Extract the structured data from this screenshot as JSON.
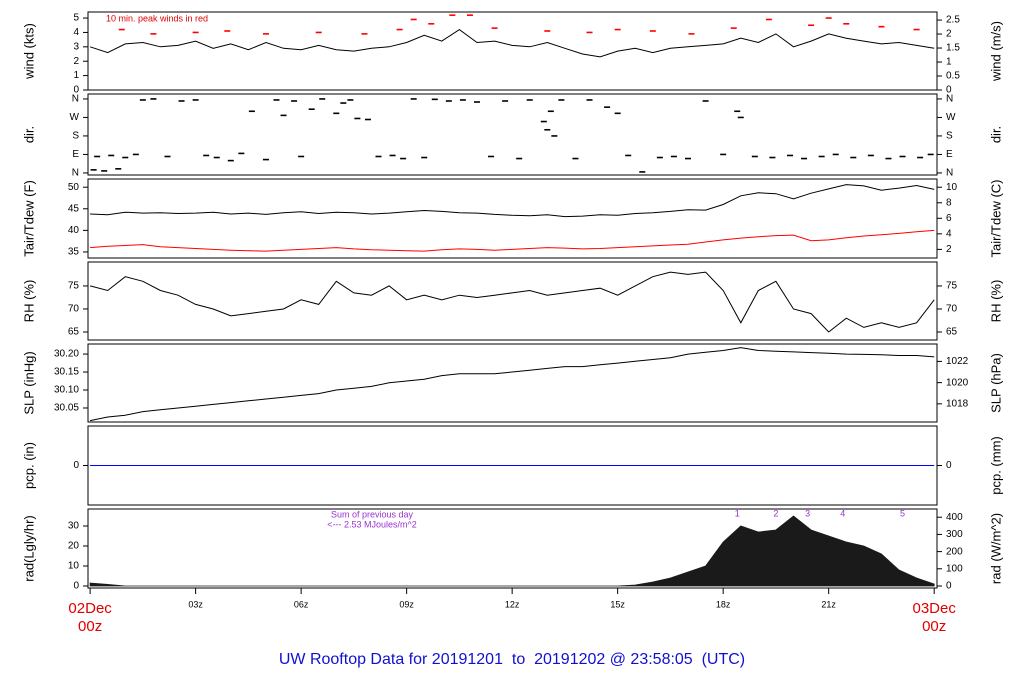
{
  "title": "UW Rooftop Data for 20191201  to  20191202 @ 23:58:05  (UTC)",
  "x": [
    0,
    0.5,
    1,
    1.5,
    2,
    2.5,
    3,
    3.5,
    4,
    4.5,
    5,
    5.5,
    6,
    6.5,
    7,
    7.5,
    8,
    8.5,
    9,
    9.5,
    10,
    10.5,
    11,
    11.5,
    12,
    12.5,
    13,
    13.5,
    14,
    14.5,
    15,
    15.5,
    16,
    16.5,
    17,
    17.5,
    18,
    18.5,
    19,
    19.5,
    20,
    20.5,
    21,
    21.5,
    22,
    22.5,
    23,
    23.5,
    24
  ],
  "xlim": [
    -0.06,
    24.08
  ],
  "xticks": [
    {
      "value": 0,
      "label": "00z"
    },
    {
      "value": 3,
      "label": "03z"
    },
    {
      "value": 6,
      "label": "06z"
    },
    {
      "value": 9,
      "label": "09z"
    },
    {
      "value": 12,
      "label": "12z"
    },
    {
      "value": 15,
      "label": "15z"
    },
    {
      "value": 18,
      "label": "18z"
    },
    {
      "value": 21,
      "label": "21z"
    },
    {
      "value": 24,
      "label": "00z"
    }
  ],
  "xtick_dates": [
    "02Dec",
    "03Dec"
  ],
  "chart_data": [
    {
      "type": "line",
      "ylabel": "wind (kts)",
      "y2label": "wind (m/s)",
      "annotation": "10 min. peak winds in red",
      "ylim": [
        0,
        5.42
      ],
      "yticks": [
        0,
        1,
        2,
        3,
        4,
        5
      ],
      "y2lim": [
        0,
        2.788
      ],
      "y2ticks": [
        0,
        0.5,
        1,
        1.5,
        2,
        2.5
      ],
      "series": [
        {
          "color": "#000000",
          "values": [
            3.0,
            2.6,
            3.2,
            3.3,
            3.0,
            3.1,
            3.4,
            2.9,
            3.2,
            2.8,
            3.3,
            2.9,
            2.8,
            3.1,
            2.8,
            2.7,
            2.9,
            3.0,
            3.3,
            3.8,
            3.4,
            4.2,
            3.3,
            3.4,
            3.1,
            3.0,
            3.3,
            2.9,
            2.5,
            2.3,
            2.7,
            2.9,
            2.6,
            2.9,
            3.0,
            3.1,
            3.2,
            3.6,
            3.3,
            3.9,
            3.0,
            3.4,
            3.9,
            3.6,
            3.4,
            3.2,
            3.3,
            3.1,
            2.9
          ]
        },
        {
          "color": "#ff0000",
          "marker": "dash",
          "x": [
            0.9,
            1.8,
            3.0,
            3.9,
            5.0,
            6.5,
            7.8,
            8.8,
            9.2,
            9.7,
            10.3,
            10.8,
            11.5,
            13.0,
            14.2,
            15.0,
            16.0,
            17.1,
            18.3,
            19.3,
            20.5,
            21.0,
            21.5,
            22.5,
            23.5
          ],
          "values": [
            4.2,
            3.9,
            4.0,
            4.1,
            3.9,
            4.0,
            3.9,
            4.2,
            4.9,
            4.6,
            5.2,
            5.2,
            4.3,
            4.1,
            4.0,
            4.2,
            4.1,
            3.9,
            4.3,
            4.9,
            4.5,
            5.0,
            4.6,
            4.4,
            4.2
          ]
        }
      ]
    },
    {
      "type": "scatter",
      "ylabel": "dir.",
      "y2label": "dir.",
      "ylim": [
        -10,
        384
      ],
      "yticks": [
        {
          "value": 360,
          "label": "N"
        },
        {
          "value": 270,
          "label": "W"
        },
        {
          "value": 180,
          "label": "S"
        },
        {
          "value": 90,
          "label": "E"
        },
        {
          "value": 0,
          "label": "N"
        }
      ],
      "y2lim": [
        -10,
        384
      ],
      "y2ticks": [
        {
          "value": 360,
          "label": "N"
        },
        {
          "value": 270,
          "label": "W"
        },
        {
          "value": 180,
          "label": "S"
        },
        {
          "value": 90,
          "label": "E"
        },
        {
          "value": 0,
          "label": "N"
        }
      ],
      "series": [
        {
          "color": "#000000",
          "x": [
            0.1,
            0.2,
            0.4,
            0.6,
            0.8,
            1.0,
            1.3,
            1.5,
            1.8,
            2.2,
            2.6,
            3.0,
            3.3,
            3.6,
            4.0,
            4.3,
            4.6,
            5.0,
            5.3,
            5.5,
            5.8,
            6.0,
            6.3,
            6.6,
            7.0,
            7.2,
            7.4,
            7.6,
            7.9,
            8.2,
            8.6,
            8.9,
            9.2,
            9.5,
            9.8,
            10.2,
            10.6,
            11.0,
            11.4,
            11.8,
            12.2,
            12.5,
            12.9,
            13.0,
            13.1,
            13.2,
            13.4,
            13.8,
            14.2,
            14.7,
            15.0,
            15.3,
            15.7,
            16.2,
            16.6,
            17.0,
            17.5,
            18.0,
            18.4,
            18.5,
            18.9,
            19.4,
            19.9,
            20.3,
            20.8,
            21.2,
            21.7,
            22.2,
            22.7,
            23.1,
            23.6,
            23.9
          ],
          "values": [
            15,
            80,
            10,
            85,
            20,
            75,
            90,
            355,
            360,
            80,
            350,
            355,
            85,
            75,
            60,
            95,
            300,
            65,
            355,
            280,
            350,
            80,
            310,
            360,
            290,
            340,
            355,
            265,
            260,
            80,
            85,
            70,
            360,
            75,
            358,
            350,
            355,
            345,
            80,
            350,
            70,
            355,
            250,
            210,
            300,
            180,
            355,
            70,
            355,
            320,
            290,
            85,
            5,
            75,
            80,
            70,
            350,
            90,
            300,
            270,
            80,
            75,
            85,
            70,
            80,
            90,
            75,
            85,
            70,
            80,
            75,
            90
          ]
        }
      ]
    },
    {
      "type": "line",
      "ylabel": "Tair/Tdew (F)",
      "y2label": "Tair/Tdew (C)",
      "ylim": [
        33.6,
        51.9
      ],
      "yticks": [
        35,
        40,
        45,
        50
      ],
      "y2lim": [
        0.89,
        11.06
      ],
      "y2ticks": [
        2,
        4,
        6,
        8,
        10
      ],
      "series": [
        {
          "color": "#000000",
          "values": [
            43.8,
            43.6,
            44.2,
            44.0,
            44.1,
            43.9,
            44.0,
            44.2,
            43.8,
            44.0,
            43.7,
            44.1,
            44.3,
            43.9,
            44.2,
            44.1,
            43.8,
            44.0,
            44.3,
            44.6,
            44.4,
            44.1,
            44.0,
            43.7,
            43.5,
            43.4,
            43.6,
            43.2,
            43.3,
            43.6,
            43.5,
            43.9,
            44.1,
            44.4,
            44.8,
            44.7,
            46.0,
            48.0,
            48.7,
            48.5,
            47.3,
            48.6,
            49.6,
            50.6,
            50.3,
            49.3,
            49.8,
            50.4,
            49.5
          ]
        },
        {
          "color": "#ff0000",
          "values": [
            36.0,
            36.3,
            36.5,
            36.7,
            36.2,
            36.0,
            35.8,
            35.6,
            35.4,
            35.3,
            35.2,
            35.4,
            35.6,
            35.8,
            36.0,
            35.7,
            35.5,
            35.4,
            35.3,
            35.2,
            35.5,
            35.7,
            35.6,
            35.4,
            35.6,
            35.8,
            36.0,
            35.9,
            35.7,
            35.8,
            36.0,
            36.2,
            36.4,
            36.6,
            36.8,
            37.3,
            37.8,
            38.2,
            38.5,
            38.8,
            38.9,
            37.6,
            37.8,
            38.3,
            38.7,
            39.0,
            39.3,
            39.7,
            40.0
          ]
        }
      ]
    },
    {
      "type": "line",
      "ylabel": "RH (%)",
      "y2label": "RH (%)",
      "ylim": [
        63.26,
        80.2
      ],
      "yticks": [
        65,
        70,
        75
      ],
      "y2lim": [
        63.26,
        80.2
      ],
      "y2ticks": [
        65,
        70,
        75
      ],
      "series": [
        {
          "color": "#000000",
          "values": [
            75,
            74,
            77,
            76,
            74,
            73,
            71,
            70,
            68.5,
            69,
            69.5,
            70,
            72,
            71,
            76,
            73.5,
            73,
            75,
            72,
            73,
            72,
            73,
            72.5,
            73,
            73.5,
            74,
            73,
            73.5,
            74,
            74.5,
            73,
            75,
            77,
            78,
            77.5,
            78,
            74,
            67,
            74,
            76,
            70,
            69,
            65,
            68,
            66,
            67,
            66,
            67,
            72
          ]
        }
      ]
    },
    {
      "type": "line",
      "ylabel": "SLP (inHg)",
      "y2label": "SLP (hPa)",
      "ylim": [
        30.011,
        30.228
      ],
      "yticks": [
        30.05,
        {
          "value": 30.1,
          "label": "30.10"
        },
        30.15,
        {
          "value": 30.2,
          "label": "30.20"
        }
      ],
      "y2lim": [
        1016.29,
        1023.64
      ],
      "y2ticks": [
        1018,
        1020,
        1022
      ],
      "series": [
        {
          "color": "#000000",
          "values": [
            30.015,
            30.025,
            30.03,
            30.04,
            30.045,
            30.05,
            30.055,
            30.06,
            30.065,
            30.07,
            30.075,
            30.08,
            30.085,
            30.09,
            30.1,
            30.105,
            30.11,
            30.12,
            30.125,
            30.13,
            30.14,
            30.145,
            30.145,
            30.145,
            30.15,
            30.155,
            30.16,
            30.165,
            30.165,
            30.17,
            30.175,
            30.18,
            30.185,
            30.19,
            30.2,
            30.205,
            30.21,
            30.218,
            30.21,
            30.208,
            30.206,
            30.204,
            30.202,
            30.2,
            30.199,
            30.198,
            30.196,
            30.196,
            30.192
          ]
        }
      ]
    },
    {
      "type": "line",
      "ylabel": "pcp. (in)",
      "y2label": "pcp. (mm)",
      "ylim": [
        -1,
        1
      ],
      "yticks": [
        0
      ],
      "y2lim": [
        -25.4,
        25.4
      ],
      "y2ticks": [
        0
      ],
      "series": [
        {
          "color": "#0000ff",
          "values": [
            0,
            0,
            0,
            0,
            0,
            0,
            0,
            0,
            0,
            0,
            0,
            0,
            0,
            0,
            0,
            0,
            0,
            0,
            0,
            0,
            0,
            0,
            0,
            0,
            0,
            0,
            0,
            0,
            0,
            0,
            0,
            0,
            0,
            0,
            0,
            0,
            0,
            0,
            0,
            0,
            0,
            0,
            0,
            0,
            0,
            0,
            0,
            0,
            0
          ]
        }
      ]
    },
    {
      "type": "area",
      "ylabel": "rad(Lgly/hr)",
      "y2label": "rad (W/m^2)",
      "annotations": [
        "Sum of previous day",
        "<--- 2.53 MJoules/m^2"
      ],
      "markers": [
        "1",
        "2",
        "3",
        "4",
        "5"
      ],
      "ylim": [
        -1,
        38.5
      ],
      "yticks": [
        0,
        10,
        20,
        30
      ],
      "y2lim": [
        -11.63,
        447.8
      ],
      "y2ticks": [
        0,
        100,
        200,
        300,
        400
      ],
      "series": [
        {
          "color": "#1a1a1a",
          "values": [
            1.5,
            0.8,
            0,
            0,
            0,
            0,
            0,
            0,
            0,
            0,
            0,
            0,
            0,
            0,
            0,
            0,
            0,
            0,
            0,
            0,
            0,
            0,
            0,
            0,
            0,
            0,
            0,
            0,
            0,
            0,
            0,
            0.5,
            2,
            4,
            7,
            10,
            22,
            30,
            27,
            28,
            35,
            28,
            25,
            22,
            20,
            16,
            8,
            4,
            1
          ]
        }
      ]
    }
  ]
}
